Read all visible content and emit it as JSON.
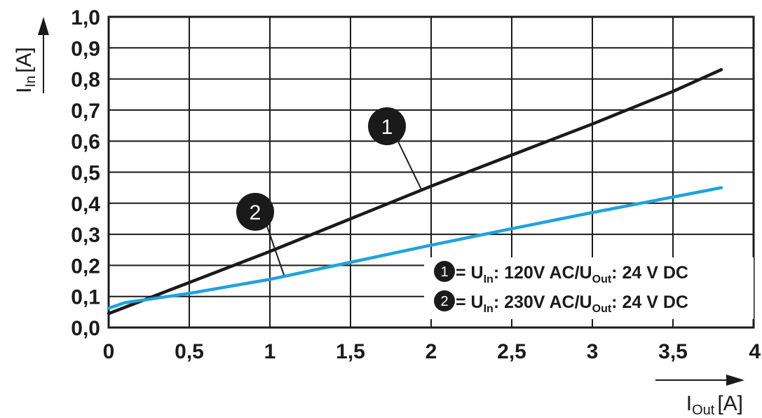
{
  "chart_data": {
    "type": "line",
    "x_ticks": [
      "0",
      "0,5",
      "1",
      "1,5",
      "2",
      "2,5",
      "3",
      "3,5",
      "4"
    ],
    "y_ticks": [
      "0,0",
      "0,1",
      "0,2",
      "0,3",
      "0,4",
      "0,5",
      "0,6",
      "0,7",
      "0,8",
      "0,9",
      "1,0"
    ],
    "xlim": [
      0,
      4
    ],
    "ylim": [
      0,
      1.0
    ],
    "grid": true,
    "xlabel": {
      "symbol": "I",
      "subscript": "Out",
      "unit": "[A]"
    },
    "ylabel": {
      "symbol": "I",
      "subscript": "In",
      "unit": "[A]"
    },
    "series": [
      {
        "marker": "1",
        "color": "#1a1a1a",
        "x": [
          0,
          0.5,
          1,
          1.5,
          2,
          2.5,
          3,
          3.5,
          3.8
        ],
        "y": [
          0.045,
          0.145,
          0.245,
          0.35,
          0.455,
          0.555,
          0.655,
          0.76,
          0.83
        ]
      },
      {
        "marker": "2",
        "color": "#1fa3dc",
        "x": [
          0,
          0.1,
          0.5,
          1,
          1.5,
          2,
          2.5,
          3,
          3.5,
          3.8
        ],
        "y": [
          0.062,
          0.08,
          0.11,
          0.155,
          0.21,
          0.265,
          0.318,
          0.37,
          0.42,
          0.45
        ]
      }
    ],
    "legend": {
      "position": "bottom-right",
      "entries": [
        {
          "marker": "1",
          "prefix": "= U",
          "sub1": "In",
          "middle": ": 120V AC/U",
          "sub2": "Out",
          "suffix": ": 24 V DC"
        },
        {
          "marker": "2",
          "prefix": "= U",
          "sub1": "In",
          "middle": ": 230V AC/U",
          "sub2": "Out",
          "suffix": ": 24 V DC"
        }
      ]
    }
  }
}
